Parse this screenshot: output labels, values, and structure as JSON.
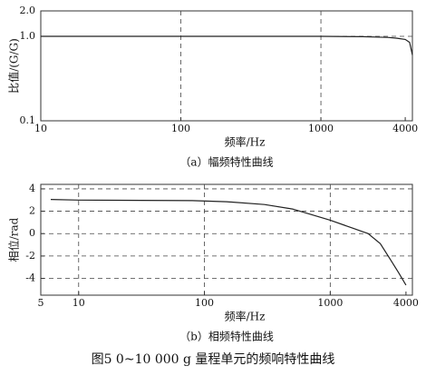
{
  "figure_caption": "图5 0~10 000 g 量程单元的频响特性曲线",
  "chart_data": [
    {
      "type": "line",
      "caption": "（a）幅频特性曲线",
      "x_label": "频率/Hz",
      "y_label": "比值/(G/G)",
      "x_log": true,
      "y_log": true,
      "xlim": [
        10,
        4500
      ],
      "ylim": [
        0.1,
        2
      ],
      "xticks": [
        10,
        100,
        1000,
        4000
      ],
      "xgrid": [
        100,
        1000
      ],
      "yticks": [
        {
          "value": 2,
          "label": "2.0"
        },
        {
          "value": 1,
          "label": "1.0"
        },
        0.1
      ],
      "ygrid": [
        1
      ],
      "x": [
        10,
        100,
        1000,
        2000,
        3000,
        3500,
        4000,
        4300,
        4500
      ],
      "series": [
        {
          "name": "幅频",
          "color": "#222",
          "values": [
            1,
            1,
            1,
            0.99,
            0.97,
            0.95,
            0.92,
            0.85,
            0.6
          ]
        }
      ]
    },
    {
      "type": "line",
      "caption": "（b）相频特性曲线",
      "x_label": "频率/Hz",
      "y_label": "相位/rad",
      "x_log": true,
      "y_log": false,
      "xlim": [
        5,
        4500
      ],
      "ylim": [
        -5.5,
        4.4
      ],
      "xticks": [
        5,
        10,
        100,
        1000,
        4000
      ],
      "xgrid": [
        10,
        100,
        1000
      ],
      "yticks": [
        4,
        2,
        0,
        -2,
        -4
      ],
      "ygrid": [
        4,
        2,
        0,
        -2,
        -4
      ],
      "x": [
        6,
        10,
        80,
        150,
        300,
        500,
        1000,
        1500,
        2000,
        2500,
        3000,
        3500,
        4000
      ],
      "series": [
        {
          "name": "相频",
          "color": "#222",
          "values": [
            3.05,
            3,
            2.95,
            2.85,
            2.6,
            2.2,
            1.2,
            0.5,
            0,
            -0.9,
            -2.3,
            -3.5,
            -4.6
          ]
        }
      ]
    }
  ]
}
